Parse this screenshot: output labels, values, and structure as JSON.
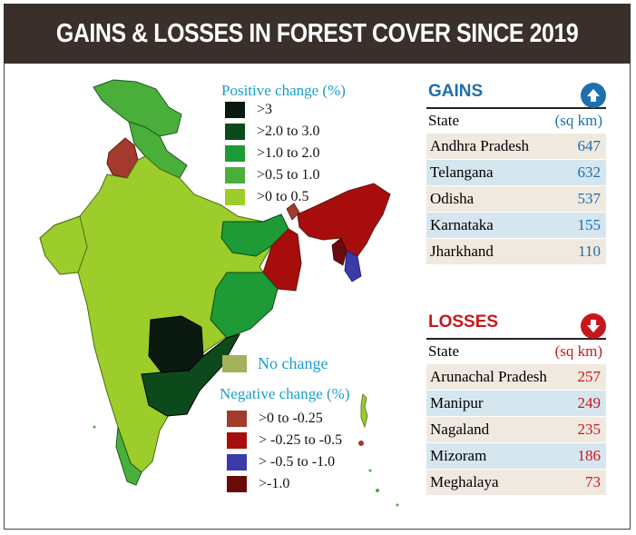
{
  "title": "GAINS & LOSSES IN FOREST COVER SINCE 2019",
  "positive_legend": {
    "title": "Positive change (%)",
    "items": [
      {
        "label": ">3",
        "color": "#0b1a10"
      },
      {
        "label": ">2.0 to 3.0",
        "color": "#0d4a1b"
      },
      {
        "label": ">1.0 to 2.0",
        "color": "#1e9a36"
      },
      {
        "label": ">0.5 to 1.0",
        "color": "#4aae3b"
      },
      {
        "label": ">0 to 0.5",
        "color": "#9ccd2a"
      }
    ]
  },
  "no_change": {
    "label": "No change",
    "color": "#a3b25a"
  },
  "negative_legend": {
    "title": "Negative change (%)",
    "items": [
      {
        "label": ">0 to -0.25",
        "color": "#a33a2c"
      },
      {
        "label": "> -0.25 to -0.5",
        "color": "#a80d0d"
      },
      {
        "label": "> -0.5 to -1.0",
        "color": "#3a3aa8"
      },
      {
        "label": ">-1.0",
        "color": "#6b0a0a"
      }
    ]
  },
  "gains": {
    "title": "GAINS",
    "icon": "arrow-up-icon",
    "color": "#1f6fae",
    "col_state": "State",
    "col_unit": "(sq km)",
    "rows": [
      {
        "state": "Andhra Pradesh",
        "value": "647"
      },
      {
        "state": "Telangana",
        "value": "632"
      },
      {
        "state": "Odisha",
        "value": "537"
      },
      {
        "state": "Karnataka",
        "value": "155"
      },
      {
        "state": "Jharkhand",
        "value": "110"
      }
    ]
  },
  "losses": {
    "title": "LOSSES",
    "icon": "arrow-down-icon",
    "color": "#c8171c",
    "col_state": "State",
    "col_unit": "(sq km)",
    "rows": [
      {
        "state": "Arunachal Pradesh",
        "value": "257"
      },
      {
        "state": "Manipur",
        "value": "249"
      },
      {
        "state": "Nagaland",
        "value": "235"
      },
      {
        "state": "Mizoram",
        "value": "186"
      },
      {
        "state": "Meghalaya",
        "value": "73"
      }
    ]
  }
}
